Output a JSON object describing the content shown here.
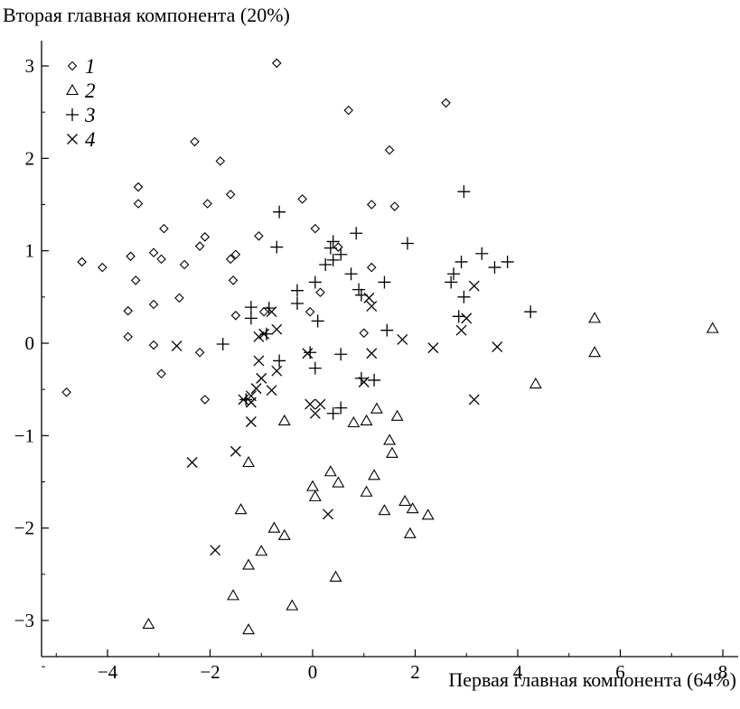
{
  "chart_data": {
    "type": "scatter",
    "ylabel": "Вторая главная компонента (20%)",
    "xlabel": "Первая главная компонента (64%)",
    "xlim": [
      -5.3,
      8.3
    ],
    "ylim": [
      -3.4,
      3.3
    ],
    "xticks": [
      -4,
      -2,
      0,
      2,
      4,
      6,
      8
    ],
    "yticks": [
      -3,
      -2,
      -1,
      0,
      1,
      2,
      3
    ],
    "xtick_labels": [
      "−4",
      "−2",
      "0",
      "2",
      "4",
      "6",
      "8"
    ],
    "ytick_labels": [
      "−3",
      "−2",
      "−1",
      "0",
      "1",
      "2",
      "3"
    ],
    "grid": false,
    "legend_position": "top-left",
    "series": [
      {
        "name": "1",
        "marker": "diamond",
        "points": [
          [
            -0.7,
            3.03
          ],
          [
            0.7,
            2.52
          ],
          [
            2.6,
            2.6
          ],
          [
            -2.3,
            2.18
          ],
          [
            1.5,
            2.09
          ],
          [
            -1.8,
            1.97
          ],
          [
            -3.4,
            1.69
          ],
          [
            -3.4,
            1.51
          ],
          [
            -1.6,
            1.61
          ],
          [
            -0.2,
            1.56
          ],
          [
            -2.05,
            1.51
          ],
          [
            1.15,
            1.5
          ],
          [
            1.6,
            1.48
          ],
          [
            -2.9,
            1.24
          ],
          [
            0.05,
            1.24
          ],
          [
            -2.1,
            1.15
          ],
          [
            -1.05,
            1.16
          ],
          [
            -2.2,
            1.05
          ],
          [
            0.5,
            1.04
          ],
          [
            -3.1,
            0.98
          ],
          [
            -3.55,
            0.94
          ],
          [
            -1.5,
            0.96
          ],
          [
            -1.6,
            0.91
          ],
          [
            -2.95,
            0.91
          ],
          [
            -4.5,
            0.88
          ],
          [
            -2.5,
            0.85
          ],
          [
            -4.1,
            0.82
          ],
          [
            1.15,
            0.82
          ],
          [
            -3.45,
            0.68
          ],
          [
            -1.55,
            0.68
          ],
          [
            0.15,
            0.55
          ],
          [
            -2.6,
            0.49
          ],
          [
            -3.1,
            0.42
          ],
          [
            -3.6,
            0.35
          ],
          [
            -1.5,
            0.3
          ],
          [
            -0.05,
            0.34
          ],
          [
            -0.95,
            0.34
          ],
          [
            1.0,
            0.11
          ],
          [
            -3.6,
            0.07
          ],
          [
            -3.1,
            -0.02
          ],
          [
            -2.2,
            -0.1
          ],
          [
            -2.95,
            -0.33
          ],
          [
            -4.8,
            -0.53
          ],
          [
            -2.1,
            -0.61
          ]
        ]
      },
      {
        "name": "2",
        "marker": "triangle",
        "points": [
          [
            7.8,
            0.16
          ],
          [
            5.5,
            0.27
          ],
          [
            5.5,
            -0.1
          ],
          [
            4.35,
            -0.44
          ],
          [
            -0.55,
            -0.84
          ],
          [
            0.8,
            -0.86
          ],
          [
            1.05,
            -0.84
          ],
          [
            1.65,
            -0.79
          ],
          [
            1.25,
            -0.71
          ],
          [
            1.5,
            -1.05
          ],
          [
            1.55,
            -1.19
          ],
          [
            -1.25,
            -1.29
          ],
          [
            0.0,
            -1.55
          ],
          [
            0.35,
            -1.39
          ],
          [
            1.2,
            -1.43
          ],
          [
            0.05,
            -1.66
          ],
          [
            0.5,
            -1.51
          ],
          [
            1.05,
            -1.61
          ],
          [
            1.4,
            -1.81
          ],
          [
            1.8,
            -1.71
          ],
          [
            1.95,
            -1.79
          ],
          [
            1.9,
            -2.06
          ],
          [
            2.25,
            -1.86
          ],
          [
            -1.4,
            -1.8
          ],
          [
            -0.75,
            -2.0
          ],
          [
            -0.55,
            -2.08
          ],
          [
            -1.0,
            -2.25
          ],
          [
            -1.25,
            -2.4
          ],
          [
            0.45,
            -2.53
          ],
          [
            -1.55,
            -2.73
          ],
          [
            -0.4,
            -2.84
          ],
          [
            -3.2,
            -3.04
          ],
          [
            -1.25,
            -3.1
          ]
        ]
      },
      {
        "name": "3",
        "marker": "plus",
        "points": [
          [
            2.95,
            1.64
          ],
          [
            -0.65,
            1.42
          ],
          [
            0.85,
            1.19
          ],
          [
            0.4,
            1.1
          ],
          [
            1.85,
            1.08
          ],
          [
            -0.7,
            1.04
          ],
          [
            0.35,
            1.03
          ],
          [
            0.55,
            0.96
          ],
          [
            3.3,
            0.97
          ],
          [
            0.4,
            0.9
          ],
          [
            3.8,
            0.88
          ],
          [
            2.9,
            0.88
          ],
          [
            3.55,
            0.82
          ],
          [
            2.75,
            0.75
          ],
          [
            0.25,
            0.85
          ],
          [
            0.75,
            0.75
          ],
          [
            0.05,
            0.66
          ],
          [
            1.4,
            0.66
          ],
          [
            2.7,
            0.66
          ],
          [
            0.9,
            0.58
          ],
          [
            -0.3,
            0.57
          ],
          [
            -0.3,
            0.43
          ],
          [
            0.95,
            0.52
          ],
          [
            2.95,
            0.5
          ],
          [
            4.25,
            0.34
          ],
          [
            -0.85,
            0.38
          ],
          [
            -1.2,
            0.39
          ],
          [
            -1.2,
            0.27
          ],
          [
            2.85,
            0.29
          ],
          [
            0.1,
            0.24
          ],
          [
            1.45,
            0.14
          ],
          [
            -1.75,
            -0.01
          ],
          [
            -0.9,
            0.1
          ],
          [
            -0.05,
            -0.1
          ],
          [
            0.05,
            -0.27
          ],
          [
            0.55,
            -0.12
          ],
          [
            -0.65,
            -0.19
          ],
          [
            1.2,
            -0.4
          ],
          [
            0.95,
            -0.38
          ],
          [
            -1.3,
            -0.61
          ],
          [
            0.55,
            -0.7
          ],
          [
            0.4,
            -0.76
          ]
        ]
      },
      {
        "name": "4",
        "marker": "cross",
        "points": [
          [
            3.15,
            0.62
          ],
          [
            1.1,
            0.49
          ],
          [
            1.15,
            0.4
          ],
          [
            -0.8,
            0.34
          ],
          [
            -0.95,
            0.1
          ],
          [
            -1.05,
            0.07
          ],
          [
            -0.7,
            0.15
          ],
          [
            3.0,
            0.27
          ],
          [
            2.9,
            0.14
          ],
          [
            1.75,
            0.04
          ],
          [
            3.6,
            -0.04
          ],
          [
            2.35,
            -0.05
          ],
          [
            -2.65,
            -0.03
          ],
          [
            -0.1,
            -0.11
          ],
          [
            1.15,
            -0.11
          ],
          [
            -1.05,
            -0.19
          ],
          [
            -0.7,
            -0.3
          ],
          [
            -1.0,
            -0.38
          ],
          [
            -1.1,
            -0.49
          ],
          [
            1.0,
            -0.42
          ],
          [
            -0.8,
            -0.51
          ],
          [
            -1.2,
            -0.57
          ],
          [
            -1.35,
            -0.61
          ],
          [
            -1.2,
            -0.64
          ],
          [
            3.15,
            -0.61
          ],
          [
            -0.05,
            -0.66
          ],
          [
            0.15,
            -0.66
          ],
          [
            0.05,
            -0.76
          ],
          [
            -1.2,
            -0.85
          ],
          [
            -1.5,
            -1.17
          ],
          [
            -2.35,
            -1.29
          ],
          [
            0.3,
            -1.85
          ],
          [
            -1.9,
            -2.24
          ]
        ]
      }
    ]
  }
}
